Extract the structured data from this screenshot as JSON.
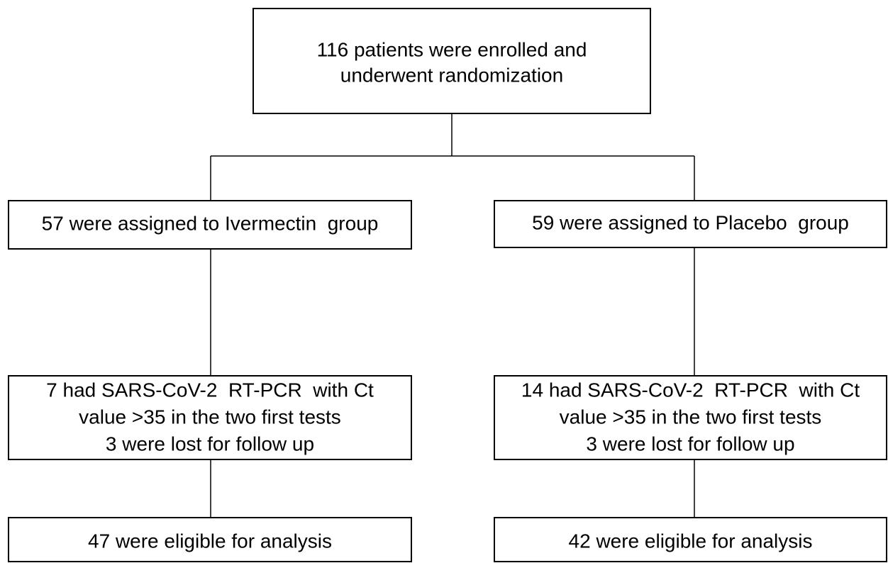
{
  "nodes": [
    {
      "lines": [
        "116 patients were enrolled and",
        "underwent randomization"
      ]
    },
    {
      "lines": [
        "57 were assigned to Ivermectin  group"
      ]
    },
    {
      "lines": [
        "59 were assigned to Placebo  group"
      ]
    },
    {
      "lines": [
        "7 had SARS-CoV-2  RT-PCR  with Ct",
        "value >35 in the two first tests",
        "3 were lost for follow up"
      ]
    },
    {
      "lines": [
        "14 had SARS-CoV-2  RT-PCR  with Ct",
        "value >35 in the two first tests",
        "3 were lost for follow up"
      ]
    },
    {
      "lines": [
        "47 were eligible for analysis"
      ]
    },
    {
      "lines": [
        "42 were eligible for analysis"
      ]
    }
  ]
}
